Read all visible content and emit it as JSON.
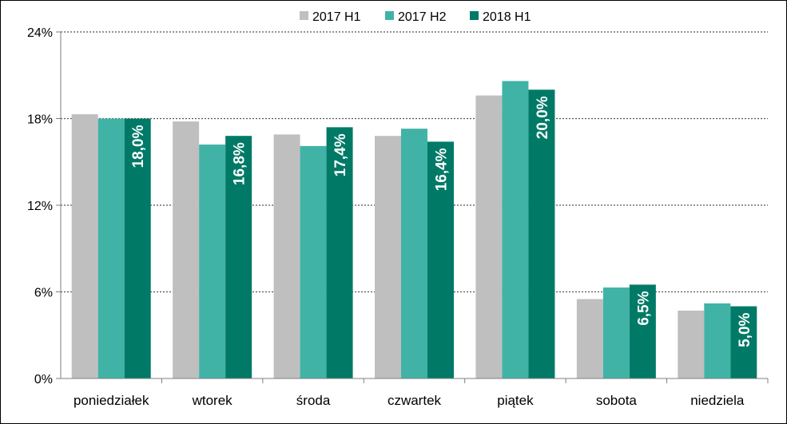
{
  "chart_data": {
    "type": "bar",
    "title": "",
    "xlabel": "",
    "ylabel": "",
    "ylim": [
      0,
      24
    ],
    "yticks": [
      "0%",
      "6%",
      "12%",
      "18%",
      "24%"
    ],
    "ytick_values": [
      0,
      6,
      12,
      18,
      24
    ],
    "grid": true,
    "legend_position": "top-center",
    "categories": [
      "poniedziałek",
      "wtorek",
      "środa",
      "czwartek",
      "piątek",
      "sobota",
      "niedziela"
    ],
    "series": [
      {
        "name": "2017 H1",
        "color": "#bfbfbf",
        "values": [
          18.3,
          17.8,
          16.9,
          16.8,
          19.6,
          5.5,
          4.7
        ]
      },
      {
        "name": "2017 H2",
        "color": "#40b3a6",
        "values": [
          18.0,
          16.2,
          16.1,
          17.3,
          20.6,
          6.3,
          5.2
        ]
      },
      {
        "name": "2018 H1",
        "color": "#007a67",
        "values": [
          18.0,
          16.8,
          17.4,
          16.4,
          20.0,
          6.5,
          5.0
        ],
        "data_labels": [
          "18,0%",
          "16,8%",
          "17,4%",
          "16,4%",
          "20,0%",
          "6,5%",
          "5,0%"
        ]
      }
    ]
  }
}
